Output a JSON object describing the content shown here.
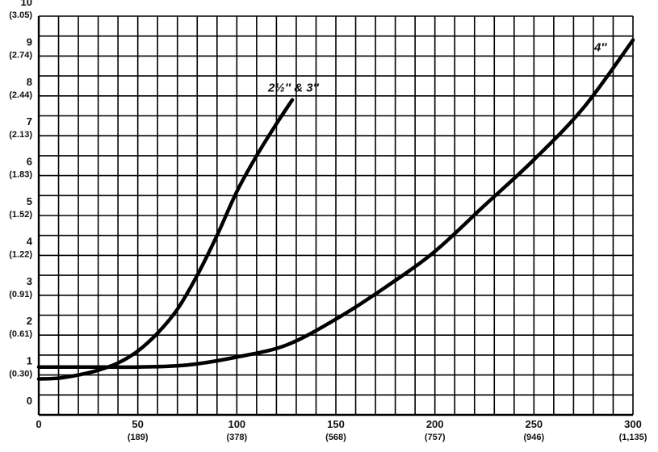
{
  "chart_data": {
    "type": "line",
    "title": "",
    "xlabel": "",
    "ylabel": "",
    "xlim": [
      0,
      300
    ],
    "ylim": [
      0,
      10
    ],
    "grid": true,
    "x_ticks": [
      {
        "value": 0,
        "label": "0",
        "sub": ""
      },
      {
        "value": 50,
        "label": "50",
        "sub": "(189)"
      },
      {
        "value": 100,
        "label": "100",
        "sub": "(378)"
      },
      {
        "value": 150,
        "label": "150",
        "sub": "(568)"
      },
      {
        "value": 200,
        "label": "200",
        "sub": "(757)"
      },
      {
        "value": 250,
        "label": "250",
        "sub": "(946)"
      },
      {
        "value": 300,
        "label": "300",
        "sub": "(1,135)"
      }
    ],
    "y_ticks": [
      {
        "value": 0,
        "label": "0",
        "sub": ""
      },
      {
        "value": 1,
        "label": "1",
        "sub": "(0.30)"
      },
      {
        "value": 2,
        "label": "2",
        "sub": "(0.61)"
      },
      {
        "value": 3,
        "label": "3",
        "sub": "(0.91)"
      },
      {
        "value": 4,
        "label": "4",
        "sub": "(1.22)"
      },
      {
        "value": 5,
        "label": "5",
        "sub": "(1.52)"
      },
      {
        "value": 6,
        "label": "6",
        "sub": "(1.83)"
      },
      {
        "value": 7,
        "label": "7",
        "sub": "(2.13)"
      },
      {
        "value": 8,
        "label": "8",
        "sub": "(2.44)"
      },
      {
        "value": 9,
        "label": "9",
        "sub": "(2.74)"
      },
      {
        "value": 10,
        "label": "10",
        "sub": "(3.05)"
      }
    ],
    "series": [
      {
        "name": "2½″ & 3″",
        "color": "#000000",
        "x": [
          0,
          10,
          20,
          30,
          40,
          50,
          60,
          70,
          80,
          90,
          100,
          110,
          120,
          128
        ],
        "y": [
          0.9,
          0.92,
          1.0,
          1.12,
          1.3,
          1.6,
          2.05,
          2.65,
          3.5,
          4.5,
          5.6,
          6.5,
          7.3,
          7.9
        ]
      },
      {
        "name": "4″",
        "color": "#000000",
        "x": [
          0,
          25,
          50,
          75,
          100,
          125,
          150,
          175,
          200,
          225,
          250,
          275,
          300
        ],
        "y": [
          1.2,
          1.2,
          1.2,
          1.25,
          1.45,
          1.75,
          2.4,
          3.2,
          4.1,
          5.25,
          6.4,
          7.7,
          9.4
        ]
      }
    ]
  }
}
